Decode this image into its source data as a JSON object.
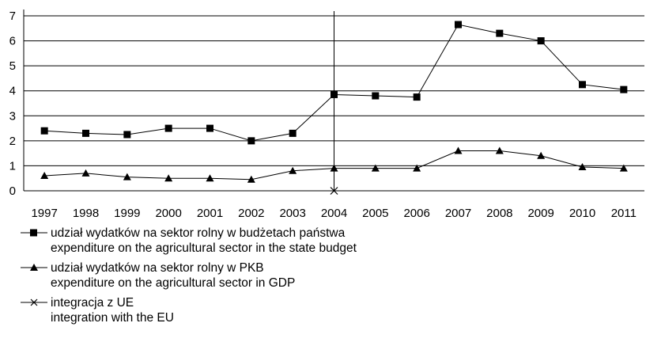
{
  "chart_data": {
    "type": "line",
    "title": "",
    "xlabel": "",
    "ylabel": "",
    "x": [
      "1997",
      "1998",
      "1999",
      "2000",
      "2001",
      "2002",
      "2003",
      "2004",
      "2005",
      "2006",
      "2007",
      "2008",
      "2009",
      "2010",
      "2011"
    ],
    "ylim": [
      0,
      7
    ],
    "yticks": [
      "0",
      "1",
      "2",
      "3",
      "4",
      "5",
      "6",
      "7"
    ],
    "grid": "horizontal",
    "series": [
      {
        "name": "udział wydatków na sektor rolny w budżetach państwa",
        "name_en": "expenditure on the agricultural sector in the state budget",
        "marker": "square",
        "color": "#000000",
        "values": [
          2.4,
          2.3,
          2.25,
          2.5,
          2.5,
          2.0,
          2.3,
          3.85,
          3.8,
          3.75,
          6.65,
          6.3,
          6.0,
          4.25,
          4.05
        ]
      },
      {
        "name": "udział wydatków na sektor rolny w PKB",
        "name_en": "expenditure on the agricultural sector in GDP",
        "marker": "triangle",
        "color": "#000000",
        "values": [
          0.6,
          0.7,
          0.55,
          0.5,
          0.5,
          0.45,
          0.8,
          0.9,
          0.9,
          0.9,
          1.6,
          1.6,
          1.4,
          0.95,
          0.9
        ]
      }
    ],
    "annotations": [
      {
        "type": "vertical-line",
        "x": "2004",
        "marker": "x",
        "name": "integracja z UE",
        "name_en": "integration with the EU"
      }
    ]
  },
  "legend": [
    {
      "marker": "square",
      "line1": "udział wydatków na sektor rolny w budżetach państwa",
      "line2": "expenditure on the agricultural sector in the state budget"
    },
    {
      "marker": "triangle",
      "line1": "udział wydatków na sektor rolny w PKB",
      "line2": "expenditure on the agricultural sector in GDP"
    },
    {
      "marker": "x",
      "line1": "integracja z UE",
      "line2": "integration with the EU"
    }
  ]
}
